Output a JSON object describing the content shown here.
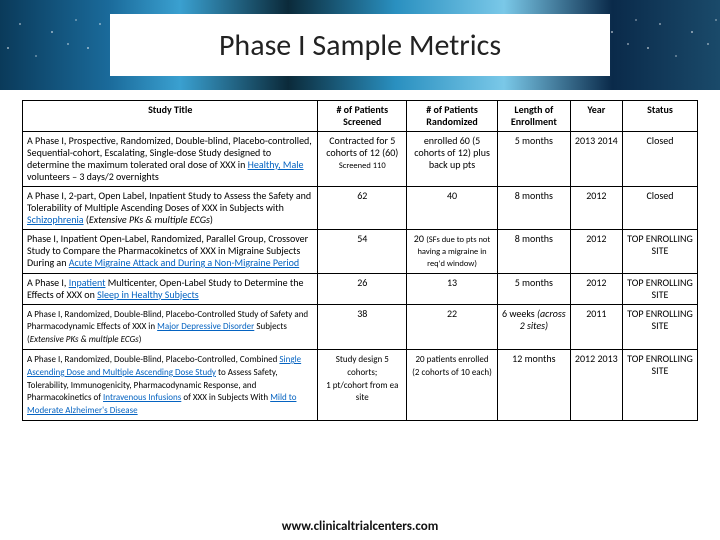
{
  "title": "Phase I Sample Metrics",
  "footer": "www.clinicaltrialcenters.com",
  "columns": [
    "Study Title",
    "# of Patients Screened",
    "# of Patients Randomized",
    "Length of Enrollment",
    "Year",
    "Status"
  ],
  "rows": [
    {
      "title_html": "A Phase I, Prospective, Randomized, Double-blind, Placebo-controlled, Sequential-cohort, Escalating, Single-dose Study designed to determine the maximum tolerated oral dose of XXX in <span class='u blue'>Healthy, Male</span> volunteers – 3 days/2 overnights",
      "screened_html": "Contracted for 5 cohorts of 12 (60)<br><span class='sub'>Screened 110</span>",
      "randomized_html": "enrolled 60 (5 cohorts of 12) plus back up pts",
      "length": "5 months",
      "year": "2013 2014",
      "status": "Closed"
    },
    {
      "title_html": "A Phase I, 2-part, Open Label, Inpatient Study to Assess the Safety and Tolerability of Multiple Ascending Doses of XXX in Subjects with <span class='u blue'>Schizophrenia</span> (<i>Extensive PKs &amp; multiple ECGs</i>)",
      "screened_html": "62",
      "randomized_html": "40",
      "length": "8 months",
      "year": "2012",
      "status": "Closed"
    },
    {
      "title_html": "Phase I, Inpatient Open-Label, Randomized, Parallel Group, Crossover Study to Compare the Pharmacokinetcs of XXX in Migraine Subjects During an <span class='u blue'>Acute Migraine Attack and During a Non-Migraine Period</span>",
      "screened_html": "54",
      "randomized_html": "20 <span class='sub'>(SFs due to pts not having a migraine in req'd window)</span>",
      "length": "8 months",
      "year": "2012",
      "status": "TOP ENROLLING SITE"
    },
    {
      "title_html": "A Phase I, <span class='u blue'>Inpatient</span> Multicenter, Open-Label Study to Determine the Effects of XXX on <span class='u blue'>Sleep in Healthy Subjects</span>",
      "screened_html": "26",
      "randomized_html": "13",
      "length": "5 months",
      "year": "2012",
      "status": "TOP ENROLLING SITE"
    },
    {
      "title_html": "<span class='small'>A Phase I, Randomized, Double-Blind, Placebo-Controlled Study of Safety and Pharmacodynamic Effects of XXX in <span class='u blue'>Major Depressive Disorder</span> Subjects (<i>Extensive PKs &amp; multiple ECGs</i>)</span>",
      "screened_html": "38",
      "randomized_html": "22",
      "length": "6 weeks <i>(across 2 sites)</i>",
      "year": "2011",
      "status": "TOP ENROLLING SITE"
    },
    {
      "title_html": "<span class='small'>A Phase I, Randomized, Double-Blind, Placebo-Controlled, Combined <span class='u blue'>Single Ascending Dose and Multiple Ascending Dose Study</span> to Assess Safety, Tolerability, Immunogenicity, Pharmacodynamic Response, and Pharmacokinetics of <span class='u blue'>Intravenous Infusions</span> of XXX in Subjects With <span class='u blue'>Mild to Moderate Alzheimer's Disease</span></span>",
      "screened_html": "<span class='small'>Study design 5 cohorts;<br>1 pt/cohort from ea site</span>",
      "randomized_html": "<span class='small'>20 patients enrolled (2 cohorts of 10 each)</span>",
      "length": "12 months",
      "year": "2012 2013",
      "status": "TOP ENROLLING SITE"
    }
  ]
}
